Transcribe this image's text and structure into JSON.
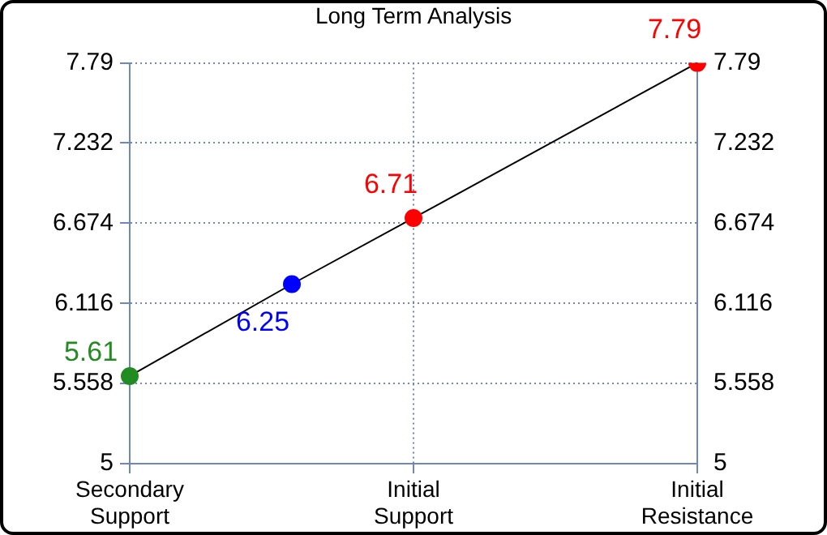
{
  "chart_data": {
    "type": "line",
    "title": "Long Term Analysis",
    "categories": [
      "Secondary Support",
      null,
      null,
      null,
      null,
      null,
      null,
      "Initial Support",
      null,
      null,
      null,
      null,
      null,
      null,
      "Initial Resistance"
    ],
    "ylim": [
      5,
      7.79
    ],
    "yticks": [
      5,
      5.558,
      6.116,
      6.674,
      7.232,
      7.79
    ],
    "y2lim": [
      5,
      7.79
    ],
    "y2ticks": [
      5,
      5.558,
      6.116,
      6.674,
      7.232,
      7.79
    ],
    "series": [
      {
        "color": "#000000",
        "colors": [
          "#228b22",
          null,
          null,
          null,
          "#0000ff",
          null,
          null,
          "#ff0000",
          null,
          null,
          null,
          null,
          null,
          null,
          "#ff0000"
        ],
        "values": [
          5.61,
          null,
          null,
          null,
          6.25,
          null,
          null,
          6.71,
          null,
          null,
          null,
          null,
          null,
          null,
          7.79
        ]
      }
    ],
    "data_labels": true,
    "grid": true,
    "marker": "circle",
    "line_style": "solid",
    "legend": false
  }
}
